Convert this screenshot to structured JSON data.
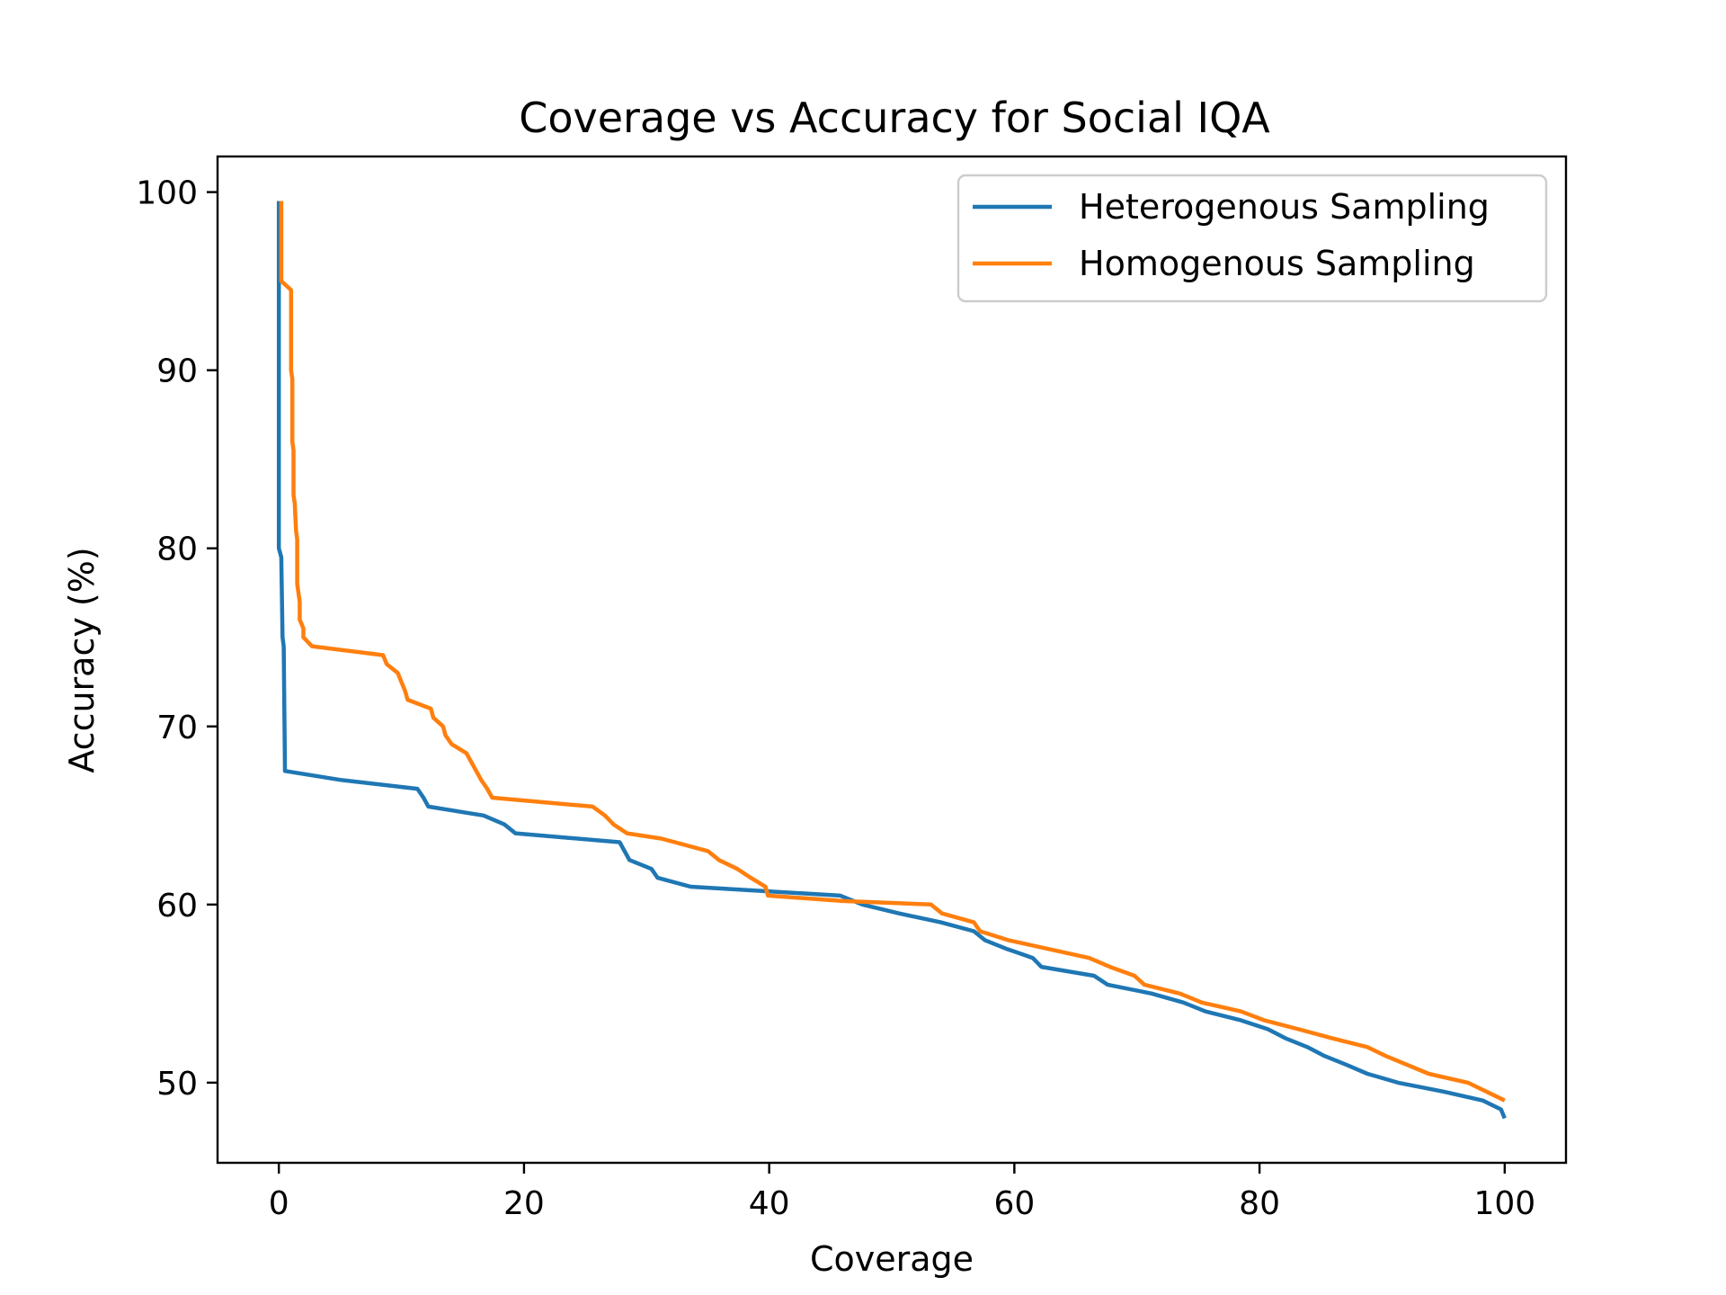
{
  "chart_data": {
    "type": "line",
    "title": "Coverage vs Accuracy for Social IQA",
    "xlabel": "Coverage",
    "ylabel": "Accuracy (%)",
    "xlim": [
      -5,
      105
    ],
    "ylim": [
      45.5,
      102
    ],
    "xticks": [
      0,
      20,
      40,
      60,
      80,
      100
    ],
    "yticks": [
      50,
      60,
      70,
      80,
      90,
      100
    ],
    "grid": false,
    "legend_position": "top-right",
    "series": [
      {
        "name": "Heterogenous Sampling",
        "color": "#1f77b4",
        "points": [
          [
            0,
            99.5
          ],
          [
            0,
            80
          ],
          [
            0.2,
            79.5
          ],
          [
            0.3,
            75
          ],
          [
            0.4,
            74.5
          ],
          [
            0.5,
            67.5
          ],
          [
            5,
            67
          ],
          [
            11.3,
            66.5
          ],
          [
            11.8,
            66
          ],
          [
            12.2,
            65.5
          ],
          [
            16.7,
            65
          ],
          [
            18.4,
            64.5
          ],
          [
            19.3,
            64
          ],
          [
            27.8,
            63.5
          ],
          [
            28.6,
            62.5
          ],
          [
            30.4,
            62
          ],
          [
            30.9,
            61.5
          ],
          [
            33.6,
            61
          ],
          [
            45.8,
            60.5
          ],
          [
            47.6,
            60
          ],
          [
            50.6,
            59.5
          ],
          [
            54,
            59
          ],
          [
            56.7,
            58.5
          ],
          [
            57.6,
            58
          ],
          [
            59.4,
            57.5
          ],
          [
            61.5,
            57
          ],
          [
            62.2,
            56.5
          ],
          [
            66.5,
            56
          ],
          [
            67.6,
            55.5
          ],
          [
            71.2,
            55
          ],
          [
            73.8,
            54.5
          ],
          [
            75.6,
            54
          ],
          [
            78.5,
            53.5
          ],
          [
            80.7,
            53
          ],
          [
            82.1,
            52.5
          ],
          [
            83.9,
            52
          ],
          [
            85.3,
            51.5
          ],
          [
            87.1,
            51
          ],
          [
            88.8,
            50.5
          ],
          [
            91.3,
            50
          ],
          [
            95,
            49.5
          ],
          [
            98.2,
            49
          ],
          [
            99.7,
            48.5
          ],
          [
            100,
            48
          ]
        ]
      },
      {
        "name": "Homogenous Sampling",
        "color": "#ff7f0e",
        "points": [
          [
            0.2,
            99.5
          ],
          [
            0.2,
            95
          ],
          [
            1,
            94.5
          ],
          [
            1,
            90
          ],
          [
            1.1,
            89.5
          ],
          [
            1.1,
            86
          ],
          [
            1.2,
            85.5
          ],
          [
            1.2,
            83
          ],
          [
            1.3,
            82.5
          ],
          [
            1.4,
            81
          ],
          [
            1.5,
            80.5
          ],
          [
            1.5,
            78
          ],
          [
            1.7,
            77
          ],
          [
            1.7,
            76
          ],
          [
            2,
            75.5
          ],
          [
            2,
            75
          ],
          [
            2.7,
            74.5
          ],
          [
            8.5,
            74
          ],
          [
            8.8,
            73.5
          ],
          [
            9.7,
            73
          ],
          [
            10,
            72.5
          ],
          [
            10.3,
            72
          ],
          [
            10.5,
            71.5
          ],
          [
            12.4,
            71
          ],
          [
            12.6,
            70.5
          ],
          [
            13.4,
            70
          ],
          [
            13.6,
            69.5
          ],
          [
            14.1,
            69
          ],
          [
            15.3,
            68.5
          ],
          [
            15.7,
            68
          ],
          [
            16.5,
            67
          ],
          [
            17,
            66.5
          ],
          [
            17.4,
            66
          ],
          [
            25.6,
            65.5
          ],
          [
            26.6,
            65
          ],
          [
            27.3,
            64.5
          ],
          [
            28.4,
            64
          ],
          [
            31.2,
            63.7
          ],
          [
            35,
            63
          ],
          [
            35.9,
            62.5
          ],
          [
            37.4,
            62
          ],
          [
            38.5,
            61.5
          ],
          [
            39.7,
            61
          ],
          [
            39.9,
            60.5
          ],
          [
            46,
            60.2
          ],
          [
            53.2,
            60
          ],
          [
            54.1,
            59.5
          ],
          [
            56.7,
            59
          ],
          [
            57.2,
            58.5
          ],
          [
            59.5,
            58
          ],
          [
            66.1,
            57
          ],
          [
            67.8,
            56.5
          ],
          [
            69.8,
            56
          ],
          [
            70.6,
            55.5
          ],
          [
            73.5,
            55
          ],
          [
            75.3,
            54.5
          ],
          [
            78.5,
            54
          ],
          [
            80.4,
            53.5
          ],
          [
            83.2,
            53
          ],
          [
            85.9,
            52.5
          ],
          [
            88.8,
            52
          ],
          [
            90.3,
            51.5
          ],
          [
            93.8,
            50.5
          ],
          [
            97,
            50
          ],
          [
            98.5,
            49.5
          ],
          [
            100,
            49
          ]
        ]
      }
    ]
  }
}
